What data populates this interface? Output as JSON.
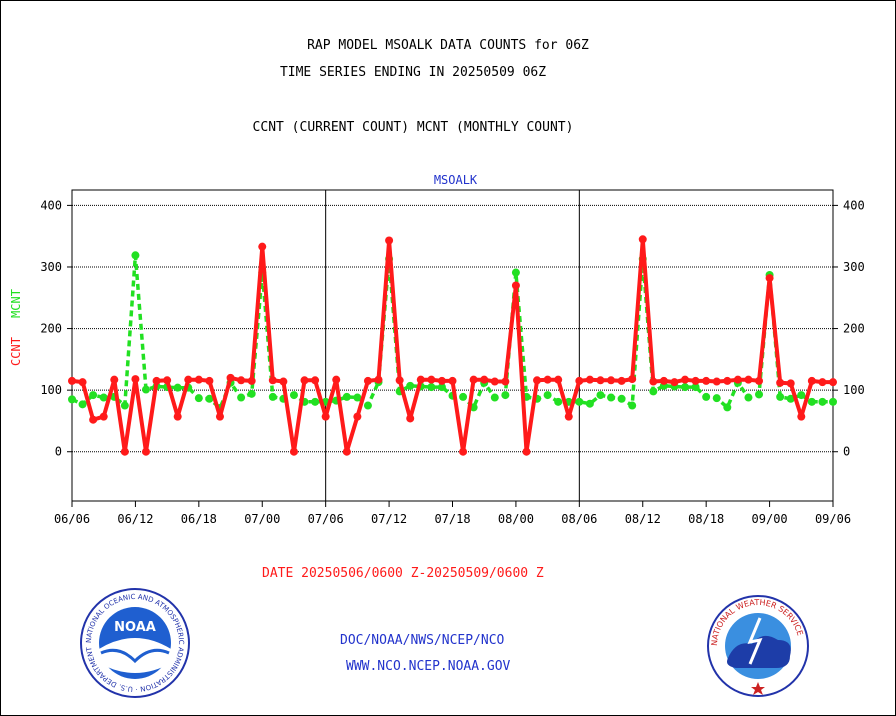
{
  "title_line1": "RAP MODEL MSOALK DATA COUNTS for 06Z",
  "title_line2": "TIME SERIES ENDING IN 20250509 06Z",
  "subtitle": "CCNT (CURRENT COUNT) MCNT (MONTHLY COUNT)",
  "footer_date": "DATE 20250506/0600 Z-20250509/0600 Z",
  "footer_org": "DOC/NOAA/NWS/NCEP/NCO",
  "footer_url": "WWW.NCO.NCEP.NOAA.GOV",
  "colors": {
    "ccnt": "#ff1a1a",
    "mcnt": "#22e022",
    "panel_title": "#2233cc",
    "footer_date": "#ff1a1a",
    "footer_links": "#2233cc"
  },
  "logos": {
    "left": "NOAA",
    "left_ring_text": "NATIONAL OCEANIC AND ATMOSPHERIC ADMINISTRATION · U.S. DEPARTMENT OF COMMERCE",
    "right_ring_text": "NATIONAL WEATHER SERVICE"
  },
  "chart_data": {
    "type": "line",
    "title": "MSOALK",
    "ylabel_ccnt": "CCNT",
    "ylabel_mcnt": "MCNT",
    "ylim": [
      -80,
      425
    ],
    "yticks": [
      0,
      100,
      200,
      300,
      400
    ],
    "grid": true,
    "x_tick_labels": [
      "06/06",
      "06/12",
      "06/18",
      "07/00",
      "07/06",
      "07/12",
      "07/18",
      "08/00",
      "08/06",
      "08/12",
      "08/18",
      "09/00",
      "09/06"
    ],
    "x_hours": [
      0,
      72
    ],
    "day_dividers": [
      24,
      48
    ],
    "series": [
      {
        "name": "CCNT",
        "x": [
          0,
          1,
          2,
          3,
          4,
          5,
          6,
          7,
          8,
          9,
          10,
          11,
          12,
          13,
          14,
          15,
          16,
          17,
          18,
          19,
          20,
          21,
          22,
          23,
          24,
          25,
          26,
          27,
          28,
          29,
          30,
          31,
          32,
          33,
          34,
          35,
          36,
          37,
          38,
          39,
          40,
          41,
          42,
          43,
          44,
          45,
          46,
          47,
          48,
          49,
          50,
          51,
          52,
          53,
          54,
          55,
          56,
          57,
          58,
          59,
          60,
          61,
          62,
          63,
          64,
          65,
          66,
          67,
          68,
          69,
          70,
          71,
          72
        ],
        "values": [
          115,
          113,
          52,
          57,
          117,
          0,
          118,
          0,
          115,
          116,
          57,
          117,
          117,
          115,
          57,
          120,
          116,
          115,
          333,
          116,
          114,
          0,
          116,
          116,
          57,
          117,
          0,
          57,
          115,
          117,
          343,
          116,
          54,
          117,
          117,
          115,
          115,
          0,
          117,
          117,
          114,
          114,
          270,
          0,
          116,
          117,
          117,
          57,
          115,
          117,
          116,
          116,
          115,
          118,
          345,
          114,
          115,
          113,
          117,
          115,
          115,
          114,
          115,
          117,
          117,
          115,
          282,
          112,
          111,
          57,
          115,
          113,
          113
        ]
      },
      {
        "name": "MCNT",
        "x": [
          0,
          1,
          2,
          3,
          4,
          5,
          6,
          7,
          8,
          9,
          10,
          11,
          12,
          13,
          14,
          15,
          16,
          17,
          18,
          19,
          20,
          21,
          22,
          23,
          24,
          25,
          26,
          27,
          28,
          29,
          30,
          31,
          32,
          33,
          34,
          35,
          36,
          37,
          38,
          39,
          40,
          41,
          42,
          43,
          44,
          45,
          46,
          47,
          48,
          49,
          50,
          51,
          52,
          53,
          54,
          55,
          56,
          57,
          58,
          59,
          60,
          61,
          62,
          63,
          64,
          65,
          66,
          67,
          68,
          69,
          70,
          71,
          72
        ],
        "values": [
          85,
          77,
          92,
          88,
          89,
          75,
          319,
          101,
          106,
          105,
          104,
          104,
          87,
          86,
          71,
          112,
          88,
          94,
          291,
          89,
          86,
          92,
          81,
          81,
          81,
          83,
          89,
          88,
          75,
          113,
          313,
          98,
          107,
          106,
          105,
          105,
          91,
          89,
          72,
          112,
          88,
          92,
          291,
          89,
          86,
          92,
          81,
          81,
          81,
          78,
          92,
          88,
          86,
          75,
          313,
          98,
          107,
          106,
          105,
          105,
          89,
          87,
          72,
          112,
          88,
          93,
          287,
          89,
          86,
          92,
          81,
          81,
          81
        ]
      }
    ]
  }
}
